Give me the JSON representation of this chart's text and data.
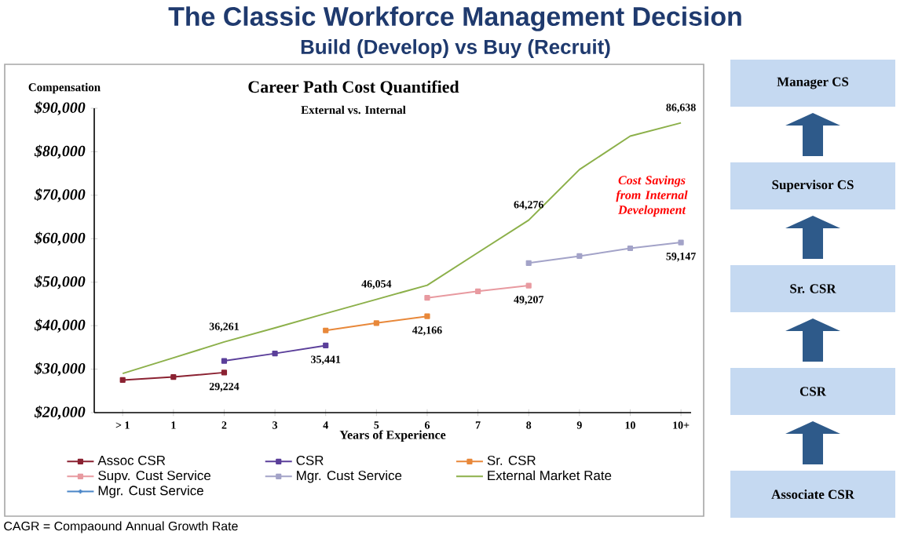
{
  "chart_data": {
    "type": "line",
    "title": "The Classic Workforce Management Decision",
    "subtitle": "Build (Develop) vs Buy (Recruit)",
    "xlabel": "Years of Experience",
    "ylabel": "Compensation",
    "categories": [
      "> 1",
      "1",
      "2",
      "3",
      "4",
      "5",
      "6",
      "7",
      "8",
      "9",
      "10",
      "10+"
    ],
    "series": [
      {
        "name": "Assoc CSR",
        "color": "#8b2232",
        "marker": "square",
        "values": [
          27500,
          28200,
          29224,
          null,
          null,
          null,
          null,
          null,
          null,
          null,
          null,
          null
        ],
        "value_labels": [
          null,
          null,
          "29,224",
          null,
          null,
          null,
          null,
          null,
          null,
          null,
          null,
          null
        ]
      },
      {
        "name": "CSR",
        "color": "#5b3f9a",
        "marker": "square",
        "values": [
          null,
          null,
          31900,
          33600,
          35441,
          null,
          null,
          null,
          null,
          null,
          null,
          null
        ],
        "value_labels": [
          null,
          null,
          null,
          null,
          "35,441",
          null,
          null,
          null,
          null,
          null,
          null,
          null
        ]
      },
      {
        "name": "Sr. CSR",
        "color": "#e8883a",
        "marker": "square",
        "values": [
          null,
          null,
          null,
          null,
          38900,
          40600,
          42166,
          null,
          null,
          null,
          null,
          null
        ],
        "value_labels": [
          null,
          null,
          null,
          null,
          null,
          null,
          "42,166",
          null,
          null,
          null,
          null,
          null
        ]
      },
      {
        "name": "Supv. Cust Service",
        "color": "#e89aa0",
        "marker": "square",
        "values": [
          null,
          null,
          null,
          null,
          null,
          null,
          46400,
          47900,
          49207,
          null,
          null,
          null
        ],
        "value_labels": [
          null,
          null,
          null,
          null,
          null,
          null,
          null,
          null,
          "49,207",
          null,
          null,
          null
        ]
      },
      {
        "name": "Mgr. Cust Service",
        "color": "#a3a3c8",
        "marker": "square",
        "values": [
          null,
          null,
          null,
          null,
          null,
          null,
          null,
          null,
          54400,
          56000,
          57800,
          59147
        ],
        "value_labels": [
          null,
          null,
          null,
          null,
          null,
          null,
          null,
          null,
          null,
          null,
          null,
          "59,147"
        ]
      },
      {
        "name": "External Market Rate",
        "color": "#8cb04a",
        "marker": "none",
        "values": [
          29000,
          32600,
          36261,
          39500,
          42800,
          46054,
          49300,
          56800,
          64276,
          75900,
          83600,
          86638
        ],
        "value_labels": [
          null,
          null,
          "36,261",
          null,
          null,
          "46,054",
          null,
          null,
          "64,276",
          null,
          null,
          "86,638"
        ]
      },
      {
        "name": "Mgr. Cust Service",
        "color": "#4a86c8",
        "marker": "cross",
        "values": [
          null,
          null,
          null,
          null,
          null,
          null,
          null,
          null,
          null,
          null,
          null,
          null
        ]
      }
    ],
    "ylim": [
      20000,
      90000
    ],
    "yticks": [
      {
        "value": 20000,
        "label": "$20,000"
      },
      {
        "value": 30000,
        "label": "$30,000"
      },
      {
        "value": 40000,
        "label": "$40,000"
      },
      {
        "value": 50000,
        "label": "$50,000"
      },
      {
        "value": 60000,
        "label": "$60,000"
      },
      {
        "value": 70000,
        "label": "$70,000"
      },
      {
        "value": 80000,
        "label": "$80,000"
      },
      {
        "value": 90000,
        "label": "$90,000"
      }
    ],
    "grid": false,
    "legend": "bottom",
    "annotations": [
      "Career Path Cost Quantified",
      "External vs. Internal",
      "Cost Savings from Internal Development",
      "CAGR = Compaound Annual Growth Rate",
      "Manager CS",
      "Supervisor CS",
      "Sr. CSR",
      "CSR",
      "Associate CSR"
    ]
  }
}
